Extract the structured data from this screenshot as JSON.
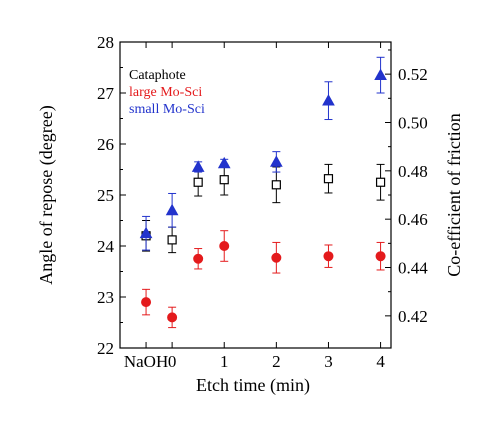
{
  "chart_data": {
    "type": "scatter",
    "xlabel": "Etch time (min)",
    "ylabel": "Angle of repose (degree)",
    "y2label": "Co-efficient of friction",
    "categories": [
      "NaOH",
      "0",
      "1",
      "2",
      "3",
      "4"
    ],
    "y_ticks": [
      "22",
      "23",
      "24",
      "25",
      "26",
      "27",
      "28"
    ],
    "y2_ticks": [
      "0.42",
      "0.44",
      "0.46",
      "0.48",
      "0.50",
      "0.52"
    ],
    "ylim": [
      22,
      28
    ],
    "y2lim": [
      0.4067,
      0.5333
    ],
    "xlim": [
      -1,
      4.2
    ],
    "legend_position": "top-left",
    "series": [
      {
        "name": "Cataphote",
        "marker": "open-square",
        "color": "#000000",
        "points": [
          {
            "x": -0.5,
            "y": 24.2,
            "err": 0.3
          },
          {
            "x": 0,
            "y": 24.12,
            "err": 0.25
          },
          {
            "x": 0.5,
            "y": 25.25,
            "err": 0.27
          },
          {
            "x": 1,
            "y": 25.3,
            "err": 0.3
          },
          {
            "x": 2,
            "y": 25.2,
            "err": 0.35
          },
          {
            "x": 3,
            "y": 25.32,
            "err": 0.28
          },
          {
            "x": 4,
            "y": 25.25,
            "err": 0.35
          }
        ]
      },
      {
        "name": "large Mo-Sci",
        "marker": "filled-circle",
        "color": "#e41a1c",
        "points": [
          {
            "x": -0.5,
            "y": 22.9,
            "err": 0.25
          },
          {
            "x": 0,
            "y": 22.6,
            "err": 0.2
          },
          {
            "x": 0.5,
            "y": 23.75,
            "err": 0.2
          },
          {
            "x": 1,
            "y": 24.0,
            "err": 0.3
          },
          {
            "x": 2,
            "y": 23.77,
            "err": 0.3
          },
          {
            "x": 3,
            "y": 23.8,
            "err": 0.22
          },
          {
            "x": 4,
            "y": 23.8,
            "err": 0.27
          }
        ]
      },
      {
        "name": "small Mo-Sci",
        "marker": "filled-triangle",
        "color": "#2233cc",
        "points": [
          {
            "x": -0.5,
            "y": 24.25,
            "err": 0.33
          },
          {
            "x": 0,
            "y": 24.7,
            "err": 0.33
          },
          {
            "x": 0.5,
            "y": 25.55,
            "err": 0.1
          },
          {
            "x": 1,
            "y": 25.62,
            "err": 0.08
          },
          {
            "x": 2,
            "y": 25.65,
            "err": 0.2
          },
          {
            "x": 3,
            "y": 26.85,
            "err": 0.37
          },
          {
            "x": 4,
            "y": 27.35,
            "err": 0.35
          }
        ]
      }
    ]
  }
}
